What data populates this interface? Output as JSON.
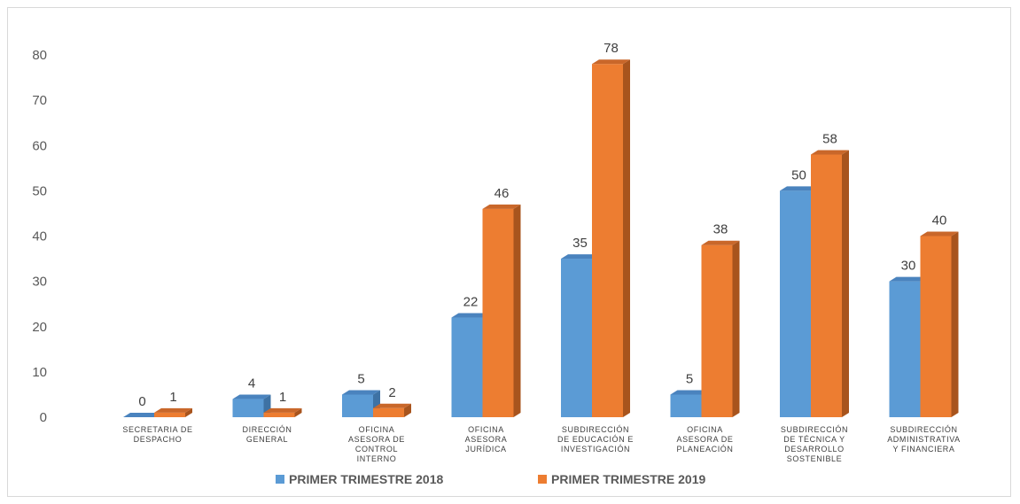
{
  "chart_data": {
    "type": "bar",
    "title": "",
    "xlabel": "",
    "ylabel": "",
    "ylim": [
      0,
      80
    ],
    "yticks": [
      0,
      10,
      20,
      30,
      40,
      50,
      60,
      70,
      80
    ],
    "categories": [
      [
        "SECRETARIA DE",
        "DESPACHO"
      ],
      [
        "DIRECCIÓN",
        "GENERAL"
      ],
      [
        "OFICINA",
        "ASESORA DE",
        "CONTROL",
        "INTERNO"
      ],
      [
        "OFICINA",
        "ASESORA",
        "JURÍDICA"
      ],
      [
        "SUBDIRECCIÓN",
        "DE EDUCACIÓN E",
        "INVESTIGACIÓN"
      ],
      [
        "OFICINA",
        "ASESORA DE",
        "PLANEACIÓN"
      ],
      [
        "SUBDIRECCIÓN",
        "DE TÉCNICA Y",
        "DESARROLLO",
        "SOSTENIBLE"
      ],
      [
        "SUBDIRECCIÓN",
        "ADMINISTRATIVA",
        "Y FINANCIERA"
      ]
    ],
    "series": [
      {
        "name": "PRIMER TRIMESTRE 2018",
        "values": [
          0,
          4,
          5,
          22,
          35,
          5,
          50,
          30
        ],
        "color": "#5b9bd5",
        "side_color": "#3e72a4",
        "top_color": "#4a83be"
      },
      {
        "name": "PRIMER TRIMESTRE 2019",
        "values": [
          1,
          1,
          2,
          46,
          78,
          38,
          58,
          40
        ],
        "color": "#ed7d31",
        "side_color": "#a8541d",
        "top_color": "#c9672a"
      }
    ],
    "grid": false,
    "legend_position": "bottom",
    "style": "3d-column"
  }
}
